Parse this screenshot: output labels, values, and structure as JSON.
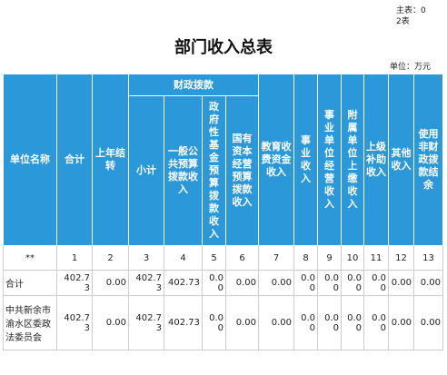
{
  "header": {
    "form_no": "主表：02表",
    "title": "部门收入总表",
    "unit": "单位：万元"
  },
  "table": {
    "columns": [
      "单位名称",
      "合计",
      "上年结转",
      "财政拨款",
      "教育收费资金收入",
      "事业收入",
      "事业单位经营收入",
      "附属单位上缴收入",
      "上级补助收入",
      "其他收入",
      "使用非财政拨款结余"
    ],
    "fiscal_subcolumns": [
      "小计",
      "一般公共预算拨款收入",
      "政府性基金预算拨款收入",
      "国有资本经营预算拨款收入"
    ],
    "index_row": [
      "**",
      "1",
      "2",
      "3",
      "4",
      "5",
      "6",
      "7",
      "8",
      "9",
      "10",
      "11",
      "12",
      "13"
    ],
    "rows": [
      [
        "合计",
        "402.73",
        "0.00",
        "402.73",
        "402.73",
        "0.00",
        "0.00",
        "0.00",
        "0.00",
        "0.00",
        "0.00",
        "0.00",
        "0.00",
        "0.00"
      ],
      [
        "中共新余市渝水区委政法委员会",
        "402.73",
        "0.00",
        "402.73",
        "402.73",
        "0.00",
        "0.00",
        "0.00",
        "0.00",
        "0.00",
        "0.00",
        "0.00",
        "0.00",
        "0.00"
      ]
    ]
  }
}
